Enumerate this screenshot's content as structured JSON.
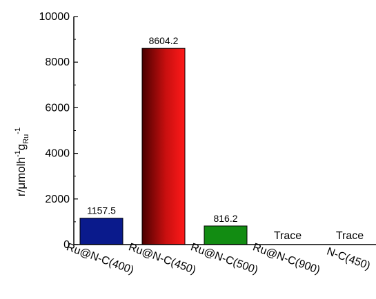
{
  "chart_data": {
    "type": "bar",
    "categories": [
      "Ru@N-C(400)",
      "Ru@N-C(450)",
      "Ru@N-C(500)",
      "Ru@N-C(900)",
      "N-C(450)"
    ],
    "values": [
      1157.5,
      8604.2,
      816.2,
      0,
      0
    ],
    "data_labels": [
      "1157.5",
      "8604.2",
      "816.2",
      "Trace",
      "Trace"
    ],
    "ylabel": {
      "base": "r/μmolh",
      "sup1": "-1",
      "mid": "g",
      "sub": "Ru",
      "sup2": "-1"
    },
    "xlabel": "",
    "ylim": [
      0,
      10000
    ],
    "yticks": [
      0,
      2000,
      4000,
      6000,
      8000,
      10000
    ],
    "colors": [
      "#0a1a8c",
      "#c41010",
      "#128c12",
      "#000000",
      "#000000"
    ],
    "grid": false
  }
}
